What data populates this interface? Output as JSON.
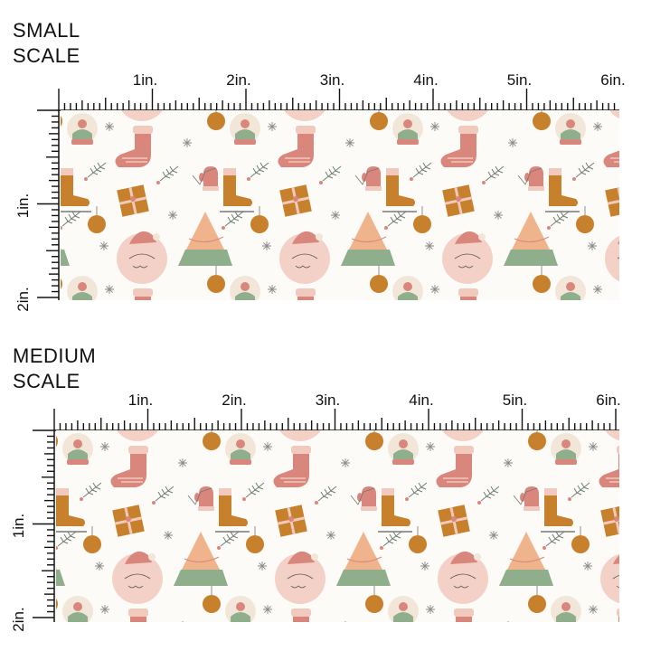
{
  "sections": [
    {
      "title_line1": "SMALL",
      "title_line2": "SCALE",
      "ruler_h_labels": [
        "1in.",
        "2in.",
        "3in.",
        "4in.",
        "5in.",
        "6in."
      ],
      "ruler_v_labels": [
        "1in.",
        "2in."
      ]
    },
    {
      "title_line1": "MEDIUM",
      "title_line2": "SCALE",
      "ruler_h_labels": [
        "1in.",
        "2in.",
        "3in.",
        "4in.",
        "5in.",
        "6in."
      ],
      "ruler_v_labels": [
        "1in.",
        "2in."
      ]
    }
  ],
  "pattern": {
    "theme": "holiday motifs",
    "motifs": [
      "snow-globe-icon",
      "stocking-icon",
      "mitten-icon",
      "ice-skate-icon",
      "gift-box-icon",
      "ornament-icon",
      "santa-face-icon",
      "christmas-tree-icon",
      "snowflake-icon",
      "pine-sprig-icon"
    ],
    "colors": {
      "background": "#fdfbf8",
      "rose": "#d9877d",
      "blush": "#f2c9bd",
      "sage": "#8fae8b",
      "caramel": "#c7802b",
      "cream": "#f2e6d9",
      "peach": "#f0b48c"
    }
  }
}
